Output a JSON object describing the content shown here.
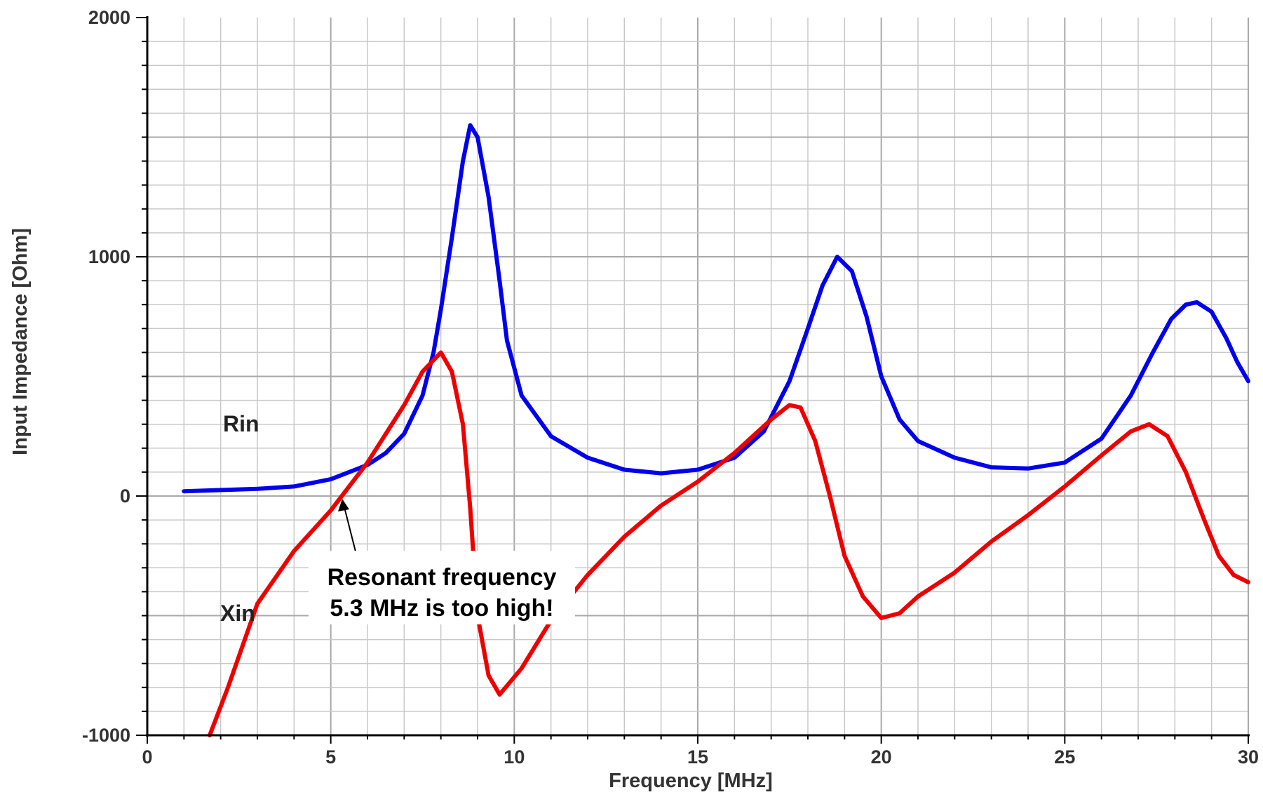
{
  "chart_data": {
    "type": "line",
    "title": "",
    "xlabel": "Frequency [MHz]",
    "ylabel": "Input Impedance [Ohm]",
    "xlim": [
      0,
      30
    ],
    "ylim": [
      -1000,
      2000
    ],
    "x_ticks": [
      "0",
      "5",
      "10",
      "15",
      "20",
      "25",
      "30"
    ],
    "y_ticks": [
      "2000",
      "1000",
      "0",
      "-1000"
    ],
    "grid": true,
    "series": [
      {
        "name": "Rin",
        "color": "#0000ee",
        "x": [
          1,
          2,
          3,
          4,
          5,
          6,
          6.5,
          7,
          7.5,
          7.8,
          8.0,
          8.3,
          8.6,
          8.8,
          9.0,
          9.3,
          9.6,
          9.8,
          10.2,
          11,
          12,
          13,
          14,
          15,
          16,
          16.8,
          17.5,
          18.0,
          18.4,
          18.8,
          19.2,
          19.6,
          20.0,
          20.5,
          21,
          22,
          23,
          24,
          25,
          26,
          26.8,
          27.4,
          27.9,
          28.3,
          28.6,
          29.0,
          29.4,
          29.7,
          30.0
        ],
        "y": [
          20,
          25,
          30,
          40,
          70,
          130,
          180,
          260,
          420,
          600,
          780,
          1080,
          1400,
          1550,
          1500,
          1250,
          900,
          650,
          420,
          250,
          160,
          110,
          95,
          110,
          160,
          270,
          480,
          700,
          880,
          1000,
          940,
          750,
          500,
          320,
          230,
          160,
          120,
          115,
          140,
          240,
          420,
          600,
          740,
          800,
          810,
          770,
          660,
          560,
          480
        ]
      },
      {
        "name": "Xin",
        "color": "#ee0000",
        "x": [
          1.7,
          2.2,
          3.0,
          4.0,
          5.0,
          5.3,
          6.0,
          7.0,
          7.5,
          8.0,
          8.3,
          8.6,
          8.8,
          9.0,
          9.3,
          9.6,
          10.2,
          11.0,
          12.0,
          13.0,
          14.0,
          15.0,
          16.0,
          17.0,
          17.5,
          17.8,
          18.2,
          18.6,
          19.0,
          19.5,
          20.0,
          20.5,
          21.0,
          22.0,
          23.0,
          24.0,
          25.0,
          26.0,
          26.8,
          27.3,
          27.8,
          28.3,
          28.8,
          29.2,
          29.6,
          30.0
        ],
        "y": [
          -1000,
          -800,
          -450,
          -230,
          -60,
          0,
          140,
          380,
          520,
          600,
          520,
          300,
          -50,
          -500,
          -750,
          -830,
          -720,
          -520,
          -330,
          -170,
          -40,
          60,
          180,
          320,
          380,
          370,
          230,
          0,
          -250,
          -420,
          -510,
          -490,
          -420,
          -320,
          -190,
          -80,
          40,
          170,
          270,
          300,
          250,
          100,
          -100,
          -250,
          -330,
          -360
        ]
      }
    ],
    "annotations": [
      {
        "text": "Rin"
      },
      {
        "text": "Xin"
      },
      {
        "text": "Resonant frequency 5.3 MHz is too high!",
        "lines": [
          "Resonant frequency",
          "5.3 MHz is too high!"
        ],
        "arrow_to": [
          5.3,
          0
        ]
      }
    ]
  }
}
